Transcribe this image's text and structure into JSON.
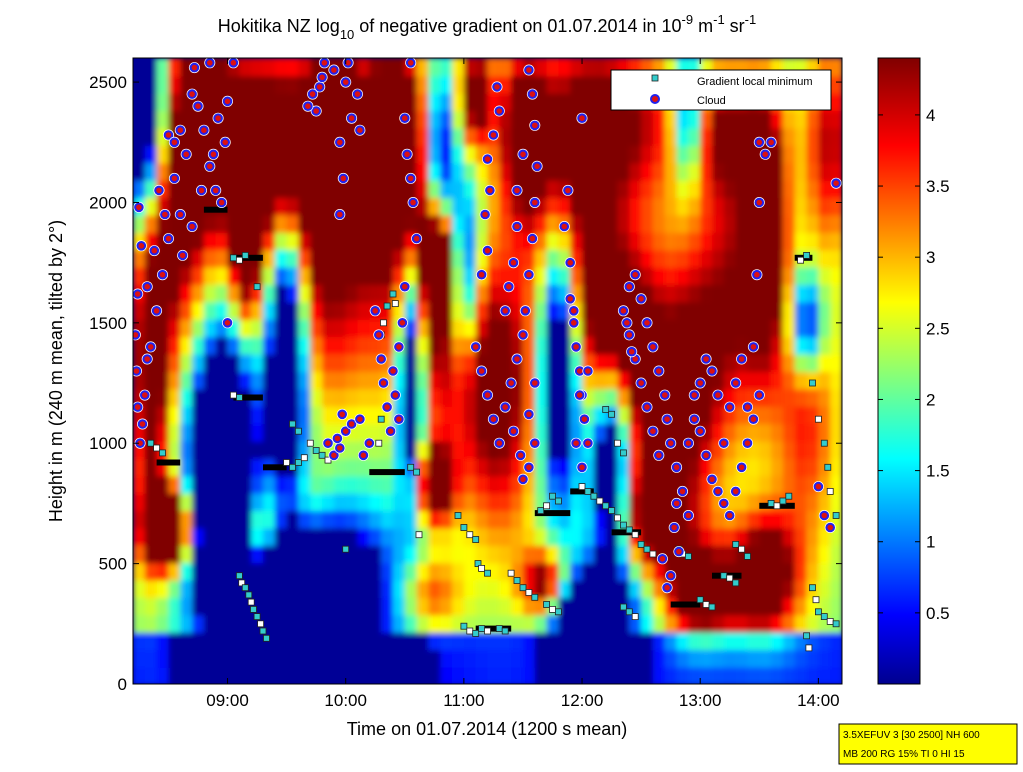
{
  "chart_data": {
    "type": "heatmap",
    "title": {
      "prefix": "Hokitika NZ log",
      "sub": "10",
      "middle": " of negative gradient on 01.07.2014 in 10",
      "exp1": "-9",
      "unit1": " m",
      "exp2": "-1",
      "unit2": " sr",
      "exp3": "-1"
    },
    "xlabel": "Time on 01.07.2014 (1200 s mean)",
    "ylabel": "Height in m (240 m mean, tilted by 2°)",
    "x_ticks": [
      "09:00",
      "10:00",
      "11:00",
      "12:00",
      "13:00",
      "14:00"
    ],
    "x_range_hours": [
      8.2,
      14.2
    ],
    "y_ticks": [
      0,
      500,
      1000,
      1500,
      2000,
      2500
    ],
    "y_range": [
      0,
      2600
    ],
    "colorbar": {
      "ticks": [
        0.5,
        1,
        1.5,
        2,
        2.5,
        3,
        3.5,
        4
      ],
      "range": [
        0,
        4.4
      ],
      "colormap": "jet"
    },
    "legend": {
      "placement": "top-right",
      "entries": [
        {
          "label": "Gradient local minimum",
          "marker": "square",
          "color": "#33cccc"
        },
        {
          "label": "Cloud",
          "marker": "circle",
          "color": "#dd1111",
          "edge": "#2222ee"
        }
      ]
    },
    "info_box": [
      "3.5XEFUV 3 [30 2500] NH 600",
      "MB 200 RG 15% TI 0 HI 15"
    ],
    "cloud_points": [
      [
        8.22,
        1450
      ],
      [
        8.23,
        1300
      ],
      [
        8.24,
        1150
      ],
      [
        8.26,
        1000
      ],
      [
        8.28,
        1080
      ],
      [
        8.3,
        1200
      ],
      [
        8.32,
        1350
      ],
      [
        8.25,
        1980
      ],
      [
        8.27,
        1820
      ],
      [
        8.24,
        1620
      ],
      [
        8.5,
        2280
      ],
      [
        8.55,
        2100
      ],
      [
        8.6,
        1950
      ],
      [
        8.5,
        1850
      ],
      [
        8.45,
        1700
      ],
      [
        8.4,
        1550
      ],
      [
        8.35,
        1400
      ],
      [
        8.6,
        2300
      ],
      [
        8.65,
        2200
      ],
      [
        8.7,
        2450
      ],
      [
        8.75,
        2400
      ],
      [
        8.8,
        2300
      ],
      [
        8.85,
        2150
      ],
      [
        8.9,
        2050
      ],
      [
        8.95,
        2000
      ],
      [
        8.62,
        1780
      ],
      [
        8.7,
        1900
      ],
      [
        8.78,
        2050
      ],
      [
        8.88,
        2200
      ],
      [
        8.92,
        2350
      ],
      [
        9.0,
        2420
      ],
      [
        9.05,
        2580
      ],
      [
        8.98,
        2250
      ],
      [
        8.85,
        2580
      ],
      [
        8.72,
        2560
      ],
      [
        8.55,
        2250
      ],
      [
        8.42,
        2050
      ],
      [
        8.47,
        1950
      ],
      [
        8.38,
        1800
      ],
      [
        8.32,
        1650
      ],
      [
        9.0,
        1500
      ],
      [
        9.78,
        2480
      ],
      [
        9.82,
        2580
      ],
      [
        9.72,
        2450
      ],
      [
        9.75,
        2380
      ],
      [
        9.68,
        2400
      ],
      [
        9.8,
        2520
      ],
      [
        10.0,
        2500
      ],
      [
        10.05,
        2350
      ],
      [
        9.95,
        2250
      ],
      [
        9.98,
        2100
      ],
      [
        9.95,
        1950
      ],
      [
        10.1,
        2450
      ],
      [
        10.12,
        2300
      ],
      [
        9.9,
        2550
      ],
      [
        10.02,
        2580
      ],
      [
        9.85,
        1000
      ],
      [
        9.9,
        950
      ],
      [
        9.95,
        980
      ],
      [
        10.0,
        1050
      ],
      [
        9.93,
        1020
      ],
      [
        9.97,
        1120
      ],
      [
        10.05,
        1080
      ],
      [
        10.15,
        950
      ],
      [
        10.12,
        1100
      ],
      [
        10.2,
        1000
      ],
      [
        10.25,
        1550
      ],
      [
        10.28,
        1450
      ],
      [
        10.3,
        1350
      ],
      [
        10.32,
        1250
      ],
      [
        10.35,
        1150
      ],
      [
        10.38,
        1050
      ],
      [
        10.4,
        1300
      ],
      [
        10.42,
        1200
      ],
      [
        10.45,
        1400
      ],
      [
        10.48,
        1500
      ],
      [
        10.45,
        1100
      ],
      [
        10.5,
        1650
      ],
      [
        10.5,
        2350
      ],
      [
        10.52,
        2200
      ],
      [
        10.55,
        2100
      ],
      [
        10.57,
        2000
      ],
      [
        10.55,
        2580
      ],
      [
        10.6,
        1850
      ],
      [
        11.1,
        1400
      ],
      [
        11.15,
        1300
      ],
      [
        11.2,
        1200
      ],
      [
        11.25,
        1100
      ],
      [
        11.3,
        1000
      ],
      [
        11.35,
        1150
      ],
      [
        11.4,
        1250
      ],
      [
        11.45,
        1350
      ],
      [
        11.5,
        1450
      ],
      [
        11.42,
        1050
      ],
      [
        11.48,
        950
      ],
      [
        11.5,
        850
      ],
      [
        11.55,
        900
      ],
      [
        11.6,
        1000
      ],
      [
        11.52,
        1550
      ],
      [
        11.55,
        1700
      ],
      [
        11.58,
        1850
      ],
      [
        11.6,
        2000
      ],
      [
        11.62,
        2150
      ],
      [
        11.6,
        2320
      ],
      [
        11.58,
        2450
      ],
      [
        11.55,
        2550
      ],
      [
        11.28,
        2480
      ],
      [
        11.3,
        2380
      ],
      [
        11.25,
        2280
      ],
      [
        11.2,
        2180
      ],
      [
        11.22,
        2050
      ],
      [
        11.18,
        1950
      ],
      [
        11.2,
        1800
      ],
      [
        11.15,
        1700
      ],
      [
        11.5,
        2200
      ],
      [
        11.45,
        2050
      ],
      [
        11.45,
        1900
      ],
      [
        11.42,
        1750
      ],
      [
        11.38,
        1650
      ],
      [
        11.35,
        1550
      ],
      [
        11.55,
        1120
      ],
      [
        11.6,
        1250
      ],
      [
        11.9,
        1600
      ],
      [
        11.93,
        1500
      ],
      [
        11.95,
        1400
      ],
      [
        11.98,
        1300
      ],
      [
        12.0,
        1200
      ],
      [
        12.02,
        1100
      ],
      [
        12.05,
        1000
      ],
      [
        12.0,
        900
      ],
      [
        11.95,
        1000
      ],
      [
        11.9,
        1750
      ],
      [
        11.85,
        1900
      ],
      [
        11.88,
        2050
      ],
      [
        12.0,
        2350
      ],
      [
        11.93,
        1550
      ],
      [
        11.98,
        1200
      ],
      [
        12.05,
        1300
      ],
      [
        12.35,
        1550
      ],
      [
        12.4,
        1450
      ],
      [
        12.45,
        1350
      ],
      [
        12.5,
        1250
      ],
      [
        12.55,
        1150
      ],
      [
        12.6,
        1050
      ],
      [
        12.65,
        950
      ],
      [
        12.5,
        1600
      ],
      [
        12.55,
        1500
      ],
      [
        12.6,
        1400
      ],
      [
        12.45,
        1700
      ],
      [
        12.4,
        1650
      ],
      [
        12.38,
        1500
      ],
      [
        12.42,
        1380
      ],
      [
        12.65,
        1300
      ],
      [
        12.7,
        1200
      ],
      [
        12.72,
        1100
      ],
      [
        12.75,
        1000
      ],
      [
        12.8,
        900
      ],
      [
        12.85,
        800
      ],
      [
        12.9,
        700
      ],
      [
        12.78,
        650
      ],
      [
        12.82,
        550
      ],
      [
        12.75,
        450
      ],
      [
        12.72,
        400
      ],
      [
        12.68,
        520
      ],
      [
        12.8,
        750
      ],
      [
        12.9,
        1000
      ],
      [
        12.95,
        1100
      ],
      [
        13.0,
        1050
      ],
      [
        13.05,
        950
      ],
      [
        13.1,
        850
      ],
      [
        13.15,
        800
      ],
      [
        13.2,
        750
      ],
      [
        13.25,
        700
      ],
      [
        13.3,
        800
      ],
      [
        13.35,
        900
      ],
      [
        13.4,
        1000
      ],
      [
        13.45,
        1100
      ],
      [
        13.5,
        1200
      ],
      [
        13.2,
        1000
      ],
      [
        13.25,
        1150
      ],
      [
        13.3,
        1250
      ],
      [
        13.35,
        1350
      ],
      [
        13.15,
        1200
      ],
      [
        13.1,
        1300
      ],
      [
        13.05,
        1350
      ],
      [
        13.0,
        1250
      ],
      [
        12.95,
        1200
      ],
      [
        13.4,
        1150
      ],
      [
        13.5,
        2250
      ],
      [
        13.55,
        2200
      ],
      [
        13.6,
        2250
      ],
      [
        13.5,
        2000
      ],
      [
        13.48,
        1700
      ],
      [
        13.45,
        1400
      ],
      [
        14.0,
        820
      ],
      [
        14.05,
        700
      ],
      [
        14.1,
        650
      ],
      [
        14.15,
        2080
      ]
    ],
    "gradient_min_points": [
      [
        8.35,
        1000
      ],
      [
        8.4,
        980
      ],
      [
        8.45,
        960
      ],
      [
        9.05,
        1770
      ],
      [
        9.1,
        1760
      ],
      [
        9.15,
        1780
      ],
      [
        9.25,
        1650
      ],
      [
        9.05,
        1200
      ],
      [
        9.1,
        1190
      ],
      [
        9.1,
        450
      ],
      [
        9.12,
        420
      ],
      [
        9.15,
        400
      ],
      [
        9.18,
        370
      ],
      [
        9.2,
        340
      ],
      [
        9.22,
        310
      ],
      [
        9.25,
        280
      ],
      [
        9.28,
        250
      ],
      [
        9.3,
        220
      ],
      [
        9.33,
        190
      ],
      [
        9.5,
        920
      ],
      [
        9.55,
        900
      ],
      [
        9.6,
        920
      ],
      [
        9.65,
        940
      ],
      [
        9.55,
        1080
      ],
      [
        9.6,
        1050
      ],
      [
        9.7,
        1000
      ],
      [
        9.75,
        970
      ],
      [
        9.8,
        950
      ],
      [
        9.85,
        930
      ],
      [
        10.0,
        560
      ],
      [
        10.3,
        1450
      ],
      [
        10.32,
        1500
      ],
      [
        10.35,
        1570
      ],
      [
        10.4,
        1620
      ],
      [
        10.42,
        1580
      ],
      [
        10.45,
        1400
      ],
      [
        10.3,
        1100
      ],
      [
        10.28,
        1000
      ],
      [
        10.55,
        900
      ],
      [
        10.6,
        880
      ],
      [
        10.62,
        620
      ],
      [
        10.95,
        700
      ],
      [
        11.0,
        650
      ],
      [
        11.05,
        620
      ],
      [
        11.1,
        600
      ],
      [
        11.12,
        500
      ],
      [
        11.15,
        480
      ],
      [
        11.2,
        460
      ],
      [
        11.0,
        240
      ],
      [
        11.05,
        220
      ],
      [
        11.1,
        210
      ],
      [
        11.15,
        230
      ],
      [
        11.2,
        220
      ],
      [
        11.3,
        230
      ],
      [
        11.35,
        220
      ],
      [
        11.4,
        460
      ],
      [
        11.45,
        430
      ],
      [
        11.5,
        400
      ],
      [
        11.55,
        380
      ],
      [
        11.6,
        360
      ],
      [
        11.7,
        330
      ],
      [
        11.75,
        310
      ],
      [
        11.8,
        300
      ],
      [
        11.65,
        720
      ],
      [
        11.7,
        740
      ],
      [
        11.75,
        780
      ],
      [
        11.8,
        760
      ],
      [
        12.0,
        820
      ],
      [
        12.05,
        800
      ],
      [
        12.1,
        780
      ],
      [
        12.15,
        760
      ],
      [
        12.2,
        740
      ],
      [
        12.25,
        720
      ],
      [
        12.3,
        690
      ],
      [
        12.35,
        660
      ],
      [
        12.4,
        640
      ],
      [
        12.45,
        620
      ],
      [
        12.5,
        580
      ],
      [
        12.55,
        560
      ],
      [
        12.6,
        540
      ],
      [
        12.35,
        320
      ],
      [
        12.4,
        300
      ],
      [
        12.45,
        280
      ],
      [
        12.2,
        1140
      ],
      [
        12.25,
        1120
      ],
      [
        12.3,
        1000
      ],
      [
        12.35,
        960
      ],
      [
        12.82,
        560
      ],
      [
        12.85,
        540
      ],
      [
        12.9,
        530
      ],
      [
        13.3,
        580
      ],
      [
        13.35,
        560
      ],
      [
        13.4,
        530
      ],
      [
        13.0,
        350
      ],
      [
        13.05,
        330
      ],
      [
        13.1,
        320
      ],
      [
        13.2,
        450
      ],
      [
        13.25,
        440
      ],
      [
        13.3,
        420
      ],
      [
        13.6,
        750
      ],
      [
        13.65,
        740
      ],
      [
        13.7,
        760
      ],
      [
        13.75,
        780
      ],
      [
        13.85,
        1760
      ],
      [
        13.9,
        1780
      ],
      [
        13.95,
        1250
      ],
      [
        14.0,
        1100
      ],
      [
        14.05,
        1000
      ],
      [
        14.08,
        900
      ],
      [
        14.1,
        800
      ],
      [
        14.15,
        700
      ],
      [
        13.95,
        400
      ],
      [
        13.98,
        350
      ],
      [
        14.0,
        300
      ],
      [
        14.05,
        280
      ],
      [
        14.1,
        260
      ],
      [
        14.15,
        250
      ],
      [
        13.9,
        200
      ],
      [
        13.92,
        150
      ]
    ],
    "black_bars": [
      [
        8.4,
        8.6,
        920
      ],
      [
        9.05,
        9.3,
        1770
      ],
      [
        9.05,
        9.3,
        1190
      ],
      [
        9.3,
        9.5,
        900
      ],
      [
        10.2,
        10.5,
        880
      ],
      [
        11.1,
        11.4,
        230
      ],
      [
        11.6,
        11.9,
        710
      ],
      [
        11.9,
        12.1,
        800
      ],
      [
        12.25,
        12.5,
        630
      ],
      [
        12.75,
        13.0,
        330
      ],
      [
        13.1,
        13.35,
        450
      ],
      [
        13.5,
        13.8,
        740
      ],
      [
        13.8,
        13.95,
        1770
      ],
      [
        8.8,
        9.0,
        1970
      ]
    ]
  }
}
